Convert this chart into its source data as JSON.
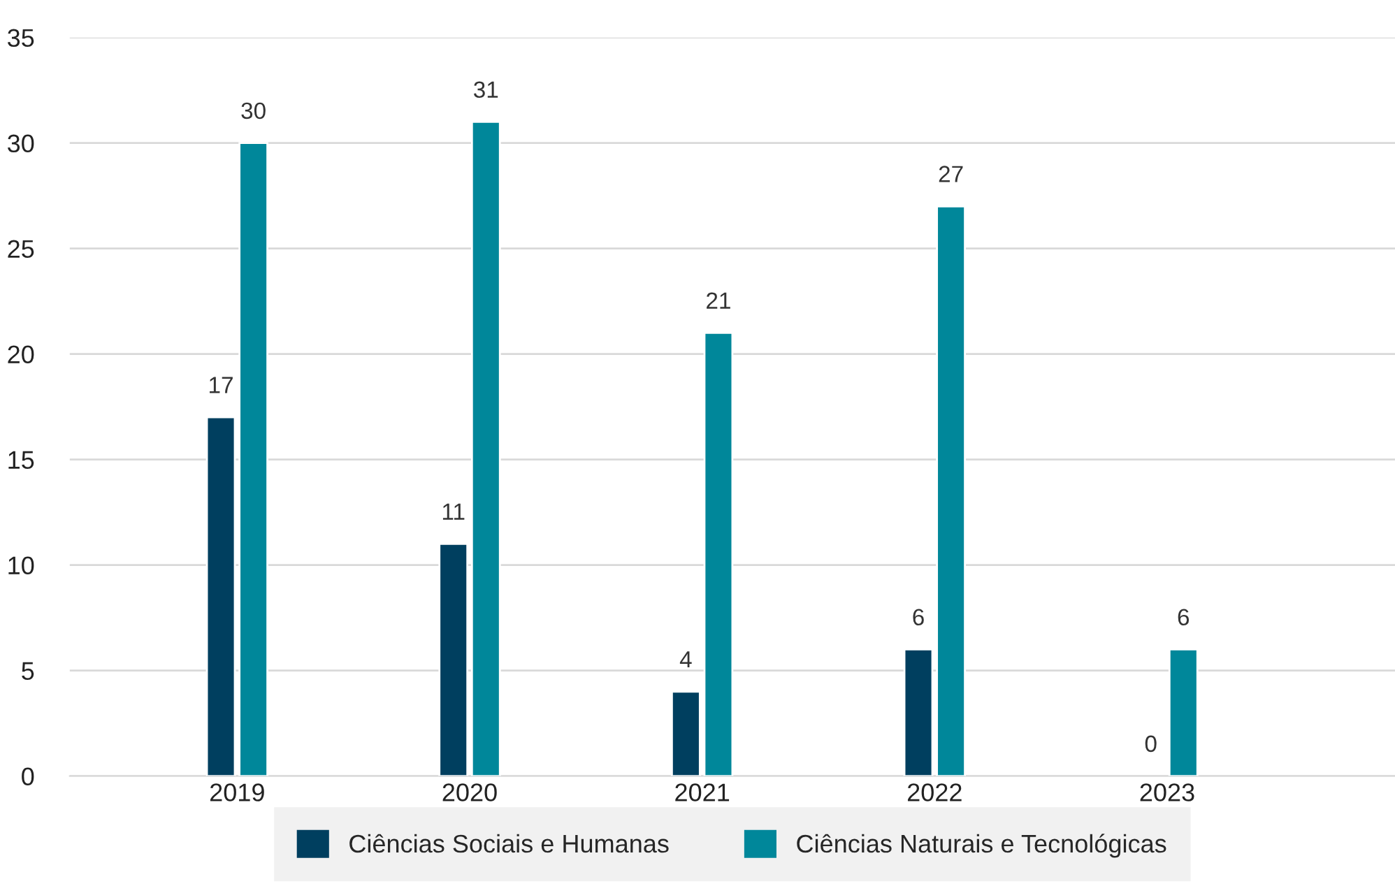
{
  "chart_data": {
    "type": "bar",
    "categories": [
      "2019",
      "2020",
      "2021",
      "2022",
      "2023"
    ],
    "series": [
      {
        "name": "Ciências Sociais e Humanas",
        "color": "#003f5f",
        "values": [
          17,
          11,
          4,
          6,
          0
        ]
      },
      {
        "name": "Ciências Naturais e Tecnológicas",
        "color": "#00879a",
        "values": [
          30,
          31,
          21,
          27,
          6
        ]
      }
    ],
    "ylim": [
      0,
      35
    ],
    "yticks": [
      0,
      5,
      10,
      15,
      20,
      25,
      30,
      35
    ],
    "grid": "y",
    "legend": "bottom",
    "data_labels": true
  }
}
